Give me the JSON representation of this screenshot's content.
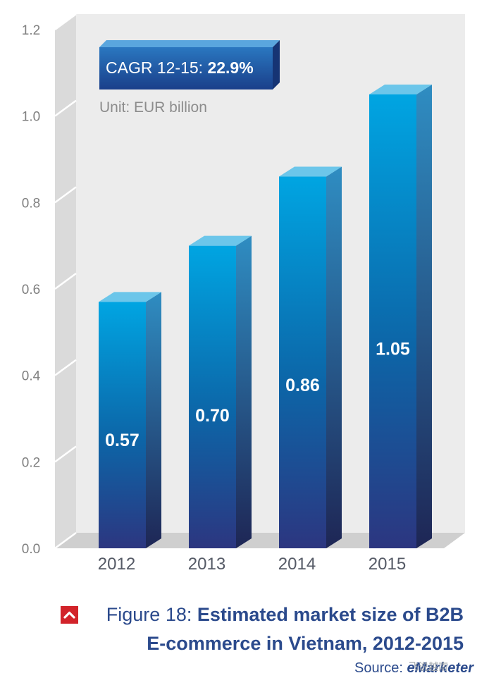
{
  "chart_data": {
    "type": "bar",
    "categories": [
      "2012",
      "2013",
      "2014",
      "2015"
    ],
    "values": [
      0.57,
      0.7,
      0.86,
      1.05
    ],
    "value_labels": [
      "0.57",
      "0.70",
      "0.86",
      "1.05"
    ],
    "y_ticks": [
      "0.0",
      "0.2",
      "0.4",
      "0.6",
      "0.8",
      "1.0",
      "1.2"
    ],
    "ylim": [
      0,
      1.2
    ],
    "xlabel": "",
    "ylabel": "",
    "grid": false,
    "style": "3d-bar",
    "annotations": {
      "cagr_prefix": "CAGR 12-15: ",
      "cagr_value": "22.9%",
      "unit": "Unit: EUR billion"
    }
  },
  "caption": {
    "figure_label": "Figure 18: ",
    "title_line1": "Estimated market size of B2B",
    "title_line2": "E-commerce in Vietnam, 2012-2015"
  },
  "source": {
    "prefix": "Source: ",
    "name": "eMarketer"
  },
  "watermark": "飞说越南",
  "colors": {
    "bar_top": "#00a4e0",
    "bar_bottom": "#2b3a80",
    "bar_cap": "#6cc6ea",
    "panel": "#ececec",
    "floor": "#cfcfcf",
    "caption": "#2b4a8c",
    "icon": "#d2232a",
    "cagr_box": "#1f5aa8"
  }
}
